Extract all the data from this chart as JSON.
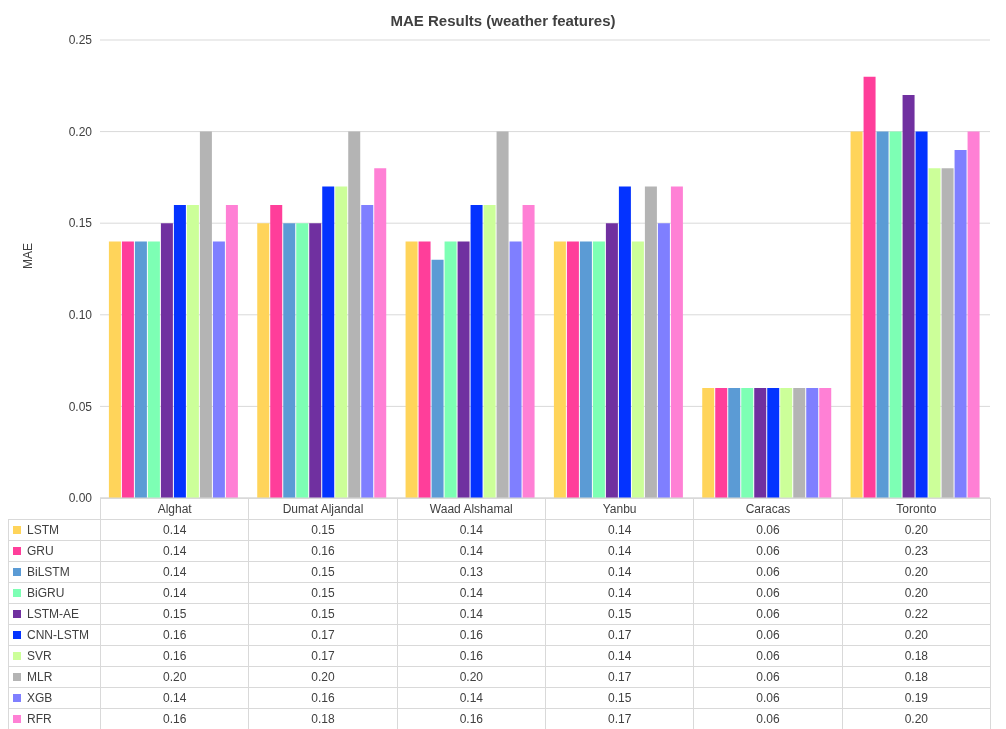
{
  "chart_data": {
    "type": "bar",
    "title": "MAE Results (weather features)",
    "ylabel": "MAE",
    "categories": [
      "Alghat",
      "Dumat Aljandal",
      "Waad Alshamal",
      "Yanbu",
      "Caracas",
      "Toronto"
    ],
    "series": [
      {
        "name": "LSTM",
        "color": "#ffd45a",
        "values": [
          0.14,
          0.15,
          0.14,
          0.14,
          0.06,
          0.2
        ],
        "value_labels": [
          "0.14",
          "0.15",
          "0.14",
          "0.14",
          "0.06",
          "0.20"
        ]
      },
      {
        "name": "GRU",
        "color": "#ff3e9a",
        "values": [
          0.14,
          0.16,
          0.14,
          0.14,
          0.06,
          0.23
        ],
        "value_labels": [
          "0.14",
          "0.16",
          "0.14",
          "0.14",
          "0.06",
          "0.23"
        ]
      },
      {
        "name": "BiLSTM",
        "color": "#5b9bd5",
        "values": [
          0.14,
          0.15,
          0.13,
          0.14,
          0.06,
          0.2
        ],
        "value_labels": [
          "0.14",
          "0.15",
          "0.13",
          "0.14",
          "0.06",
          "0.20"
        ]
      },
      {
        "name": "BiGRU",
        "color": "#7dffb4",
        "values": [
          0.14,
          0.15,
          0.14,
          0.14,
          0.06,
          0.2
        ],
        "value_labels": [
          "0.14",
          "0.15",
          "0.14",
          "0.14",
          "0.06",
          "0.20"
        ]
      },
      {
        "name": "LSTM-AE",
        "color": "#7030a0",
        "values": [
          0.15,
          0.15,
          0.14,
          0.15,
          0.06,
          0.22
        ],
        "value_labels": [
          "0.15",
          "0.15",
          "0.14",
          "0.15",
          "0.06",
          "0.22"
        ]
      },
      {
        "name": "CNN-LSTM",
        "color": "#0433ff",
        "values": [
          0.16,
          0.17,
          0.16,
          0.17,
          0.06,
          0.2
        ],
        "value_labels": [
          "0.16",
          "0.17",
          "0.16",
          "0.17",
          "0.06",
          "0.20"
        ]
      },
      {
        "name": "SVR",
        "color": "#ccff99",
        "values": [
          0.16,
          0.17,
          0.16,
          0.14,
          0.06,
          0.18
        ],
        "value_labels": [
          "0.16",
          "0.17",
          "0.16",
          "0.14",
          "0.06",
          "0.18"
        ]
      },
      {
        "name": "MLR",
        "color": "#b4b4b4",
        "values": [
          0.2,
          0.2,
          0.2,
          0.17,
          0.06,
          0.18
        ],
        "value_labels": [
          "0.20",
          "0.20",
          "0.20",
          "0.17",
          "0.06",
          "0.18"
        ]
      },
      {
        "name": "XGB",
        "color": "#7f7fff",
        "values": [
          0.14,
          0.16,
          0.14,
          0.15,
          0.06,
          0.19
        ],
        "value_labels": [
          "0.14",
          "0.16",
          "0.14",
          "0.15",
          "0.06",
          "0.19"
        ]
      },
      {
        "name": "RFR",
        "color": "#ff80d5",
        "values": [
          0.16,
          0.18,
          0.16,
          0.17,
          0.06,
          0.2
        ],
        "value_labels": [
          "0.16",
          "0.18",
          "0.16",
          "0.17",
          "0.06",
          "0.20"
        ]
      }
    ],
    "ylim": [
      0,
      0.25
    ],
    "yticks": [
      {
        "value": 0,
        "label": "0.00"
      },
      {
        "value": 0.05,
        "label": "0.05"
      },
      {
        "value": 0.1,
        "label": "0.10"
      },
      {
        "value": 0.15,
        "label": "0.15"
      },
      {
        "value": 0.2,
        "label": "0.20"
      },
      {
        "value": 0.25,
        "label": "0.25"
      }
    ],
    "grid": "y",
    "legend": "bottom"
  }
}
